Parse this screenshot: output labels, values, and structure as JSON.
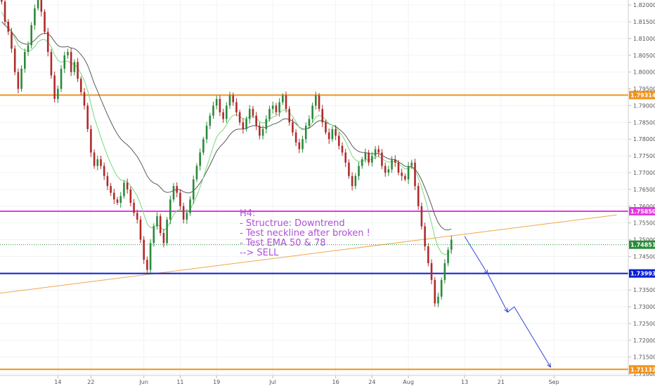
{
  "chart_data": {
    "type": "candlestick",
    "colors": {
      "up": "#2a8a3a",
      "down": "#b02a2a",
      "ema50": "#7bd87b",
      "ema78": "#5a5a5a",
      "resistance": "#f0931e",
      "neckline": "#e23be3",
      "support": "#0a1fd4",
      "trendline": "#f2a64a",
      "arrow": "#3444d8",
      "current": "#2a8a3a"
    },
    "y_ticks": [
      "1.82000",
      "1.81500",
      "1.81000",
      "1.80500",
      "1.80000",
      "1.79500",
      "1.79000",
      "1.78500",
      "1.78000",
      "1.77500",
      "1.77000",
      "1.76500",
      "1.76000",
      "1.75500",
      "1.75000",
      "1.74500",
      "1.74000",
      "1.73500",
      "1.73000",
      "1.72500",
      "1.72000",
      "1.71500",
      "1.71000"
    ],
    "y_range": [
      1.7095,
      1.8215
    ],
    "x_ticks": [
      {
        "label": "14",
        "i": 17
      },
      {
        "label": "22",
        "i": 27
      },
      {
        "label": "Jun",
        "i": 43
      },
      {
        "label": "11",
        "i": 54
      },
      {
        "label": "19",
        "i": 65
      },
      {
        "label": "Jul",
        "i": 82
      },
      {
        "label": "16",
        "i": 101
      },
      {
        "label": "24",
        "i": 112
      },
      {
        "label": "Aug",
        "i": 123
      },
      {
        "label": "13",
        "i": 140
      },
      {
        "label": "21",
        "i": 151
      },
      {
        "label": "Sep",
        "i": 167
      }
    ],
    "x_slots": 190,
    "levels": [
      {
        "name": "resistance",
        "value": 1.79314,
        "label": "1.79314",
        "color": "#f0931e"
      },
      {
        "name": "neckline",
        "value": 1.7585,
        "label": "1.75850",
        "color": "#e23be3"
      },
      {
        "name": "current-price",
        "value": 1.74851,
        "label": "1.74851",
        "color": "#2a8a3a"
      },
      {
        "name": "support",
        "value": 1.73993,
        "label": "1.73993",
        "color": "#0a1fd4"
      },
      {
        "name": "target",
        "value": 1.71132,
        "label": "1.71132",
        "color": "#f0931e"
      }
    ],
    "closes": [
      1.821,
      1.815,
      1.812,
      1.807,
      1.8,
      1.795,
      1.801,
      1.806,
      1.808,
      1.814,
      1.819,
      1.822,
      1.818,
      1.812,
      1.806,
      1.799,
      1.792,
      1.795,
      1.801,
      1.805,
      1.806,
      1.8,
      1.803,
      1.798,
      1.794,
      1.79,
      1.783,
      1.776,
      1.772,
      1.774,
      1.772,
      1.769,
      1.766,
      1.764,
      1.762,
      1.761,
      1.763,
      1.767,
      1.765,
      1.761,
      1.758,
      1.756,
      1.75,
      1.744,
      1.741,
      1.749,
      1.754,
      1.757,
      1.752,
      1.749,
      1.756,
      1.762,
      1.766,
      1.764,
      1.76,
      1.756,
      1.758,
      1.762,
      1.768,
      1.772,
      1.776,
      1.78,
      1.784,
      1.787,
      1.79,
      1.792,
      1.788,
      1.786,
      1.79,
      1.793,
      1.791,
      1.788,
      1.785,
      1.783,
      1.786,
      1.789,
      1.787,
      1.784,
      1.781,
      1.783,
      1.786,
      1.789,
      1.79,
      1.788,
      1.791,
      1.793,
      1.789,
      1.785,
      1.782,
      1.779,
      1.777,
      1.78,
      1.784,
      1.786,
      1.79,
      1.793,
      1.789,
      1.785,
      1.782,
      1.78,
      1.783,
      1.781,
      1.778,
      1.776,
      1.773,
      1.769,
      1.766,
      1.769,
      1.772,
      1.774,
      1.776,
      1.773,
      1.775,
      1.777,
      1.776,
      1.772,
      1.77,
      1.771,
      1.774,
      1.773,
      1.77,
      1.769,
      1.768,
      1.772,
      1.773,
      1.766,
      1.76,
      1.754,
      1.748,
      1.743,
      1.738,
      1.731,
      1.733,
      1.738,
      1.743,
      1.747,
      1.75
    ],
    "ema50": [
      1.818,
      1.816,
      1.814,
      1.812,
      1.81,
      1.808,
      1.807,
      1.8065,
      1.8062,
      1.8066,
      1.8076,
      1.809,
      1.8096,
      1.8097,
      1.809,
      1.8075,
      1.8052,
      1.8035,
      1.803,
      1.8031,
      1.8033,
      1.8025,
      1.8024,
      1.8012,
      1.7995,
      1.7975,
      1.7945,
      1.7905,
      1.7865,
      1.7835,
      1.7805,
      1.7777,
      1.775,
      1.7727,
      1.7706,
      1.7689,
      1.7678,
      1.7676,
      1.7672,
      1.7661,
      1.7646,
      1.763,
      1.7606,
      1.7576,
      1.7547,
      1.7536,
      1.7537,
      1.7545,
      1.7539,
      1.7528,
      1.7535,
      1.7553,
      1.7574,
      1.7587,
      1.759,
      1.7584,
      1.7583,
      1.7591,
      1.7609,
      1.7631,
      1.7657,
      1.7686,
      1.7717,
      1.7747,
      1.7778,
      1.7806,
      1.782,
      1.7828,
      1.7843,
      1.7861,
      1.7871,
      1.7873,
      1.7868,
      1.7861,
      1.7861,
      1.7867,
      1.7868,
      1.7863,
      1.7852,
      1.7848,
      1.785,
      1.7858,
      1.7866,
      1.7869,
      1.7877,
      1.7887,
      1.7887,
      1.788,
      1.7868,
      1.7852,
      1.7835,
      1.7828,
      1.783,
      1.7836,
      1.7849,
      1.7866,
      1.7871,
      1.7867,
      1.7858,
      1.7846,
      1.7842,
      1.7835,
      1.7823,
      1.781,
      1.7794,
      1.7772,
      1.775,
      1.7738,
      1.7733,
      1.7734,
      1.7739,
      1.7737,
      1.774,
      1.7746,
      1.7748,
      1.7742,
      1.7735,
      1.7731,
      1.7733,
      1.7733,
      1.7726,
      1.7719,
      1.7711,
      1.7713,
      1.7716,
      1.7706,
      1.7685,
      1.7657,
      1.7624,
      1.7588,
      1.755,
      1.7508,
      1.7478,
      1.7461,
      1.7455,
      1.7459,
      1.7468
    ],
    "ema78": [
      1.815,
      1.814,
      1.813,
      1.812,
      1.8108,
      1.8094,
      1.8087,
      1.8084,
      1.8083,
      1.8087,
      1.8095,
      1.8106,
      1.8113,
      1.8116,
      1.8114,
      1.8106,
      1.8091,
      1.8079,
      1.8075,
      1.8075,
      1.8076,
      1.8072,
      1.807,
      1.8063,
      1.8052,
      1.8039,
      1.802,
      1.7994,
      1.7966,
      1.7943,
      1.7919,
      1.7896,
      1.7873,
      1.7852,
      1.7832,
      1.7815,
      1.7801,
      1.7791,
      1.7783,
      1.7773,
      1.7761,
      1.7748,
      1.7731,
      1.7711,
      1.769,
      1.7677,
      1.7669,
      1.7665,
      1.7656,
      1.7645,
      1.7641,
      1.7642,
      1.7647,
      1.765,
      1.7649,
      1.7643,
      1.764,
      1.764,
      1.7646,
      1.7656,
      1.7669,
      1.7685,
      1.7704,
      1.7723,
      1.7744,
      1.7764,
      1.7777,
      1.7787,
      1.7799,
      1.7813,
      1.7823,
      1.7829,
      1.783,
      1.783,
      1.7832,
      1.7837,
      1.784,
      1.784,
      1.7836,
      1.7834,
      1.7835,
      1.7839,
      1.7844,
      1.7847,
      1.7852,
      1.7859,
      1.7861,
      1.7859,
      1.7854,
      1.7846,
      1.7836,
      1.783,
      1.783,
      1.7833,
      1.784,
      1.785,
      1.7855,
      1.7855,
      1.7851,
      1.7845,
      1.7842,
      1.7838,
      1.783,
      1.7822,
      1.7811,
      1.7796,
      1.778,
      1.7769,
      1.7763,
      1.776,
      1.776,
      1.7757,
      1.7756,
      1.7757,
      1.7757,
      1.7752,
      1.7746,
      1.7741,
      1.774,
      1.7738,
      1.7732,
      1.7726,
      1.7719,
      1.7718,
      1.7718,
      1.7711,
      1.7697,
      1.7678,
      1.7655,
      1.763,
      1.7603,
      1.7574,
      1.7551,
      1.7537,
      1.753,
      1.7529,
      1.7532
    ],
    "trendline": {
      "from_i": -4,
      "from_y": 1.7336,
      "to_i": 186,
      "to_y": 1.7574
    },
    "arrow_path": [
      {
        "i": 140,
        "y": 1.751
      },
      {
        "i": 147,
        "y": 1.7398
      },
      {
        "i": 153,
        "y": 1.7284
      },
      {
        "i": 155,
        "y": 1.73
      },
      {
        "i": 166,
        "y": 1.712
      }
    ],
    "annotation": {
      "lines": [
        "H4:",
        "- Structrue: Downtrend",
        "- Test neckline after broken !",
        "- Test EMA 50 & 78",
        "--> SELL"
      ]
    }
  }
}
